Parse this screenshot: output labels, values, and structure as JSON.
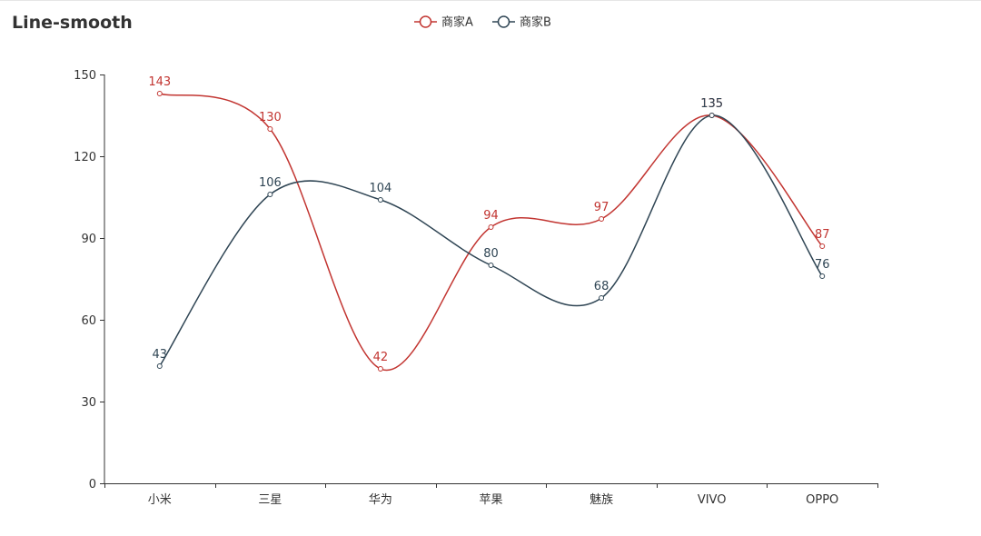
{
  "chart_data": {
    "type": "line",
    "title": "Line-smooth",
    "smooth": true,
    "categories": [
      "小米",
      "三星",
      "华为",
      "苹果",
      "魅族",
      "VIVO",
      "OPPO"
    ],
    "series": [
      {
        "name": "商家A",
        "values": [
          143,
          130,
          42,
          94,
          97,
          135,
          87
        ],
        "color": "#c23531"
      },
      {
        "name": "商家B",
        "values": [
          43,
          106,
          104,
          80,
          68,
          135,
          76
        ],
        "color": "#2f4554"
      }
    ],
    "ylim": [
      0,
      150
    ],
    "yticks": [
      0,
      30,
      60,
      90,
      120,
      150
    ],
    "xlabel": "",
    "ylabel": "",
    "legend_position": "top-center",
    "grid": false,
    "data_labels": true
  }
}
